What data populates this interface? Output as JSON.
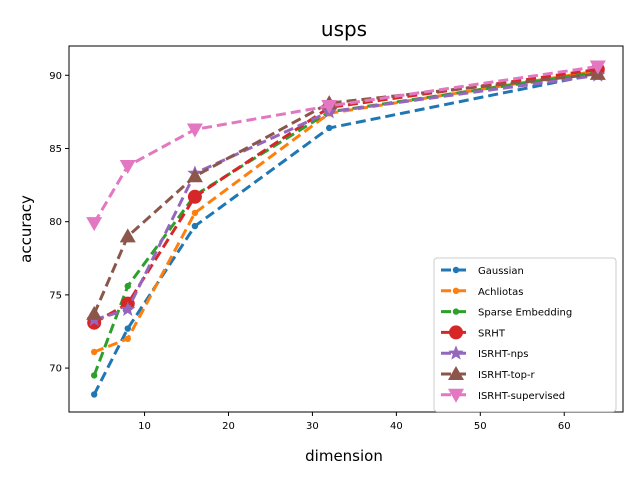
{
  "chart_data": {
    "type": "line",
    "title": "usps",
    "xlabel": "dimension",
    "ylabel": "accuracy",
    "xlim": [
      1,
      67
    ],
    "ylim": [
      67,
      92
    ],
    "xticks": [
      10,
      20,
      30,
      40,
      50,
      60
    ],
    "yticks": [
      70,
      75,
      80,
      85,
      90
    ],
    "grid": false,
    "legend_position": "lower-right",
    "x": [
      4,
      8,
      16,
      32,
      64
    ],
    "series": [
      {
        "name": "Gaussian",
        "values": [
          68.2,
          72.7,
          79.7,
          86.4,
          90.1
        ],
        "color": "#1f77b4",
        "marker": "circle",
        "marker_size": "small"
      },
      {
        "name": "Achliotas",
        "values": [
          71.1,
          72.0,
          80.6,
          87.4,
          90.3
        ],
        "color": "#ff7f0e",
        "marker": "circle",
        "marker_size": "small"
      },
      {
        "name": "Sparse Embedding",
        "values": [
          69.5,
          75.6,
          81.8,
          87.5,
          90.2
        ],
        "color": "#2ca02c",
        "marker": "circle",
        "marker_size": "small"
      },
      {
        "name": "SRHT",
        "values": [
          73.1,
          74.4,
          81.7,
          87.8,
          90.4
        ],
        "color": "#d62728",
        "marker": "circle",
        "marker_size": "large"
      },
      {
        "name": "ISRHT-nps",
        "values": [
          73.3,
          74.0,
          83.3,
          87.5,
          90.0
        ],
        "color": "#9467bd",
        "marker": "star",
        "marker_size": "large"
      },
      {
        "name": "ISRHT-top-r",
        "values": [
          73.7,
          79.0,
          83.1,
          88.1,
          90.1
        ],
        "color": "#8c564b",
        "marker": "triangle-up",
        "marker_size": "large"
      },
      {
        "name": "ISRHT-supervised",
        "values": [
          79.9,
          83.8,
          86.3,
          87.9,
          90.6
        ],
        "color": "#e377c2",
        "marker": "triangle-down",
        "marker_size": "large"
      }
    ]
  }
}
